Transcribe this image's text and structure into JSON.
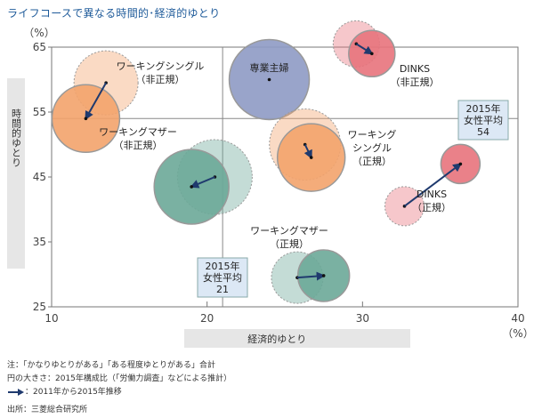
{
  "title": "ライフコースで異なる時間的･経済的ゆとり",
  "chart_data": {
    "type": "bubble",
    "title": "ライフコースで異なる時間的･経済的ゆとり",
    "xlabel": "経済的ゆとり",
    "ylabel": "時間的ゆとり",
    "x_unit": "（%）",
    "y_unit": "（%）",
    "xlim": [
      10,
      40
    ],
    "ylim": [
      25,
      65
    ],
    "x_ticks": [
      "10",
      "20",
      "30",
      "40"
    ],
    "y_ticks": [
      "25",
      "35",
      "45",
      "55",
      "65"
    ],
    "reference_lines": [
      {
        "axis": "x",
        "value": 21,
        "label_lines": [
          "2015年",
          "女性平均",
          "21"
        ]
      },
      {
        "axis": "y",
        "value": 54,
        "label_lines": [
          "2015年",
          "女性平均",
          "54"
        ]
      }
    ],
    "series": [
      {
        "name": "ワーキングシングル（非正規）",
        "label_lines": [
          "ワーキングシングル",
          "（非正規）"
        ],
        "color": "#f3a36b",
        "x2011": 13.5,
        "y2011": 59.5,
        "x2015": 12.2,
        "y2015": 54.0,
        "r2011": 36,
        "r2015": 38
      },
      {
        "name": "専業主婦",
        "label_lines": [
          "専業主婦"
        ],
        "color": "#8e9ac4",
        "x2011": null,
        "y2011": null,
        "x2015": 24.0,
        "y2015": 60.0,
        "r2011": null,
        "r2015": 45
      },
      {
        "name": "DINKS（非正規）",
        "label_lines": [
          "DINKS",
          "（非正規）"
        ],
        "color": "#e8737c",
        "x2011": 29.6,
        "y2011": 65.5,
        "x2015": 30.6,
        "y2015": 64.0,
        "r2011": 26,
        "r2015": 26
      },
      {
        "name": "ワーキングマザー（非正規）",
        "label_lines": [
          "ワーキングマザー",
          "（非正規）"
        ],
        "color": "#6ba898",
        "x2011": 20.5,
        "y2011": 45.0,
        "x2015": 19.0,
        "y2015": 43.5,
        "r2011": 42,
        "r2015": 42
      },
      {
        "name": "ワーキングシングル（正規）",
        "label_lines": [
          "ワーキング",
          "シングル",
          "（正規）"
        ],
        "color": "#f3a36b",
        "x2011": 26.3,
        "y2011": 50.0,
        "x2015": 26.7,
        "y2015": 48.0,
        "r2011": 40,
        "r2015": 38
      },
      {
        "name": "DINKS（正規）",
        "label_lines": [
          "DINKS",
          "（正規）"
        ],
        "color": "#e8737c",
        "x2011": 32.7,
        "y2011": 40.5,
        "x2015": 36.3,
        "y2015": 47.0,
        "r2011": 22,
        "r2015": 22
      },
      {
        "name": "ワーキングマザー（正規）",
        "label_lines": [
          "ワーキングマザー",
          "（正規）"
        ],
        "color": "#6ba898",
        "x2011": 25.8,
        "y2011": 29.5,
        "x2015": 27.5,
        "y2015": 29.8,
        "r2011": 29,
        "r2015": 29
      }
    ]
  },
  "notes": {
    "line1": "注：「かなりゆとりがある」「ある程度ゆとりがある」合計",
    "line2": "円の大きさ：2015年構成比（「労働力調査」などによる推計）",
    "line3": "：2011年から2015年推移",
    "source": "出所：三菱総合研究所"
  },
  "colors": {
    "arrow": "#1f3a6e",
    "title": "#1f5b9a",
    "axis": "#666666",
    "box_fill": "#dce8f5"
  }
}
